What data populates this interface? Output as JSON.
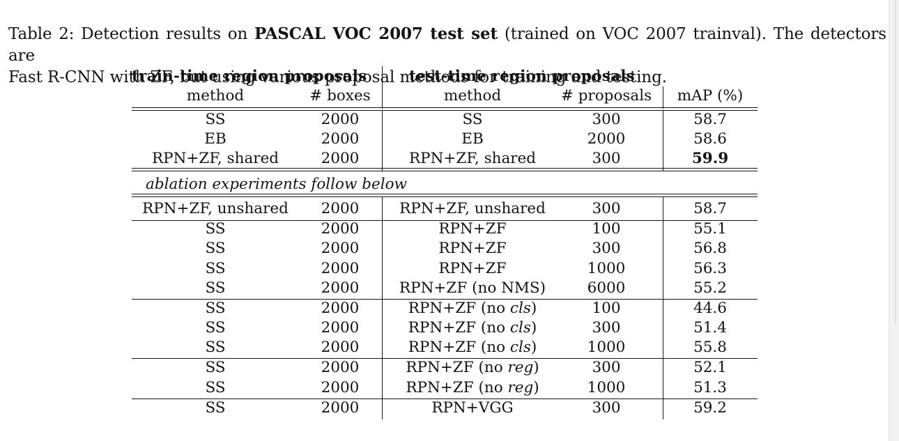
{
  "caption": {
    "prefix": "Table 2: Detection results on ",
    "bold": "PASCAL VOC 2007 test set",
    "middle": " (trained on VOC 2007 trainval). The detectors are",
    "line2": "Fast R-CNN with ZF, but using various proposal methods for training and testing."
  },
  "header": {
    "train_group": "train-time region proposals",
    "test_group": "test-time region proposals",
    "columns": [
      "method",
      "# boxes",
      "method",
      "# proposals",
      "mAP (%)"
    ]
  },
  "ablation_label": "ablation experiments follow below",
  "rows": [
    {
      "train_method": "SS",
      "train_boxes": "2000",
      "test_method": "SS",
      "test_note": "",
      "proposals": "300",
      "map": "58.7"
    },
    {
      "train_method": "EB",
      "train_boxes": "2000",
      "test_method": "EB",
      "test_note": "",
      "proposals": "2000",
      "map": "58.6"
    },
    {
      "train_method": "RPN+ZF, shared",
      "train_boxes": "2000",
      "test_method": "RPN+ZF, shared",
      "test_note": "",
      "proposals": "300",
      "map": "59.9",
      "bold_map": true
    },
    {
      "train_method": "RPN+ZF, unshared",
      "train_boxes": "2000",
      "test_method": "RPN+ZF, unshared",
      "test_note": "",
      "proposals": "300",
      "map": "58.7"
    },
    {
      "train_method": "SS",
      "train_boxes": "2000",
      "test_method": "RPN+ZF",
      "test_note": "",
      "proposals": "100",
      "map": "55.1"
    },
    {
      "train_method": "SS",
      "train_boxes": "2000",
      "test_method": "RPN+ZF",
      "test_note": "",
      "proposals": "300",
      "map": "56.8"
    },
    {
      "train_method": "SS",
      "train_boxes": "2000",
      "test_method": "RPN+ZF",
      "test_note": "",
      "proposals": "1000",
      "map": "56.3"
    },
    {
      "train_method": "SS",
      "train_boxes": "2000",
      "test_method": "RPN+ZF (no NMS)",
      "test_note": "",
      "proposals": "6000",
      "map": "55.2"
    },
    {
      "train_method": "SS",
      "train_boxes": "2000",
      "test_method": "RPN+ZF (no ",
      "test_note": "cls",
      "test_suffix": ")",
      "proposals": "100",
      "map": "44.6"
    },
    {
      "train_method": "SS",
      "train_boxes": "2000",
      "test_method": "RPN+ZF (no ",
      "test_note": "cls",
      "test_suffix": ")",
      "proposals": "300",
      "map": "51.4"
    },
    {
      "train_method": "SS",
      "train_boxes": "2000",
      "test_method": "RPN+ZF (no ",
      "test_note": "cls",
      "test_suffix": ")",
      "proposals": "1000",
      "map": "55.8"
    },
    {
      "train_method": "SS",
      "train_boxes": "2000",
      "test_method": "RPN+ZF (no ",
      "test_note": "reg",
      "test_suffix": ")",
      "proposals": "300",
      "map": "52.1"
    },
    {
      "train_method": "SS",
      "train_boxes": "2000",
      "test_method": "RPN+ZF (no ",
      "test_note": "reg",
      "test_suffix": ")",
      "proposals": "1000",
      "map": "51.3"
    },
    {
      "train_method": "SS",
      "train_boxes": "2000",
      "test_method": "RPN+VGG",
      "test_note": "",
      "proposals": "300",
      "map": "59.2"
    }
  ]
}
